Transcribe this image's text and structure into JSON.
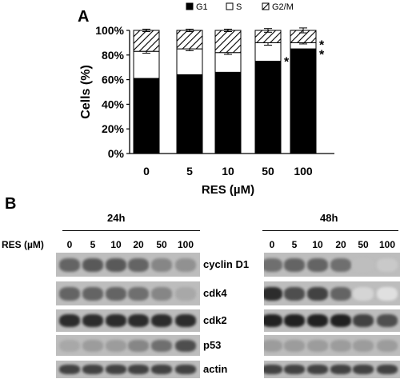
{
  "panel_a": {
    "letter": "A",
    "legend": [
      "G1",
      "S",
      "G2/M"
    ],
    "asterisk": "*"
  },
  "chart_data": {
    "type": "bar",
    "stacked": true,
    "categories": [
      "0",
      "5",
      "10",
      "50",
      "100"
    ],
    "series": [
      {
        "name": "G1",
        "values": [
          61,
          64,
          66,
          75,
          85
        ],
        "errors": [
          2,
          1,
          1.5,
          3,
          1
        ],
        "fill": "#000000"
      },
      {
        "name": "S",
        "values": [
          22,
          21,
          16,
          15,
          5
        ],
        "errors": [
          1.5,
          1.5,
          1.5,
          2,
          1
        ],
        "fill": "#ffffff"
      },
      {
        "name": "G2/M",
        "values": [
          17,
          15,
          18,
          10,
          10
        ],
        "errors": [
          1,
          1,
          1,
          1.5,
          2
        ],
        "fill": "hatch"
      }
    ],
    "significant": [
      {
        "category": "50",
        "marks": 1
      },
      {
        "category": "100",
        "marks": 2
      }
    ],
    "ylabel": "Cells (%)",
    "xlabel": "RES (µM)",
    "ylim": [
      0,
      100
    ],
    "yticks": [
      "0%",
      "20%",
      "40%",
      "60%",
      "80%",
      "100%"
    ],
    "grid": false,
    "legend_position": "top"
  },
  "panel_b": {
    "letter": "B",
    "res_label": "RES (µM)",
    "time_points": [
      "24h",
      "48h"
    ],
    "concentrations": [
      "0",
      "5",
      "10",
      "20",
      "50",
      "100"
    ],
    "proteins": [
      "cyclin D1",
      "cdk4",
      "cdk2",
      "p53",
      "actin"
    ],
    "band_levels_24h": {
      "cyclin D1": [
        0.6,
        0.65,
        0.65,
        0.6,
        0.45,
        0.4
      ],
      "cdk4": [
        0.6,
        0.6,
        0.6,
        0.55,
        0.45,
        0.3
      ],
      "cdk2": [
        0.85,
        0.85,
        0.85,
        0.85,
        0.85,
        0.85
      ],
      "p53": [
        0.3,
        0.35,
        0.35,
        0.45,
        0.55,
        0.7
      ],
      "actin": [
        0.75,
        0.75,
        0.75,
        0.75,
        0.75,
        0.75
      ]
    },
    "band_levels_48h": {
      "cyclin D1": [
        0.55,
        0.6,
        0.6,
        0.55,
        0.2,
        0.15
      ],
      "cdk4": [
        0.85,
        0.7,
        0.75,
        0.6,
        0.1,
        0.05
      ],
      "cdk2": [
        0.9,
        0.9,
        0.9,
        0.9,
        0.75,
        0.7
      ],
      "p53": [
        0.35,
        0.35,
        0.35,
        0.35,
        0.35,
        0.35
      ],
      "actin": [
        0.75,
        0.75,
        0.75,
        0.75,
        0.75,
        0.75
      ]
    }
  }
}
